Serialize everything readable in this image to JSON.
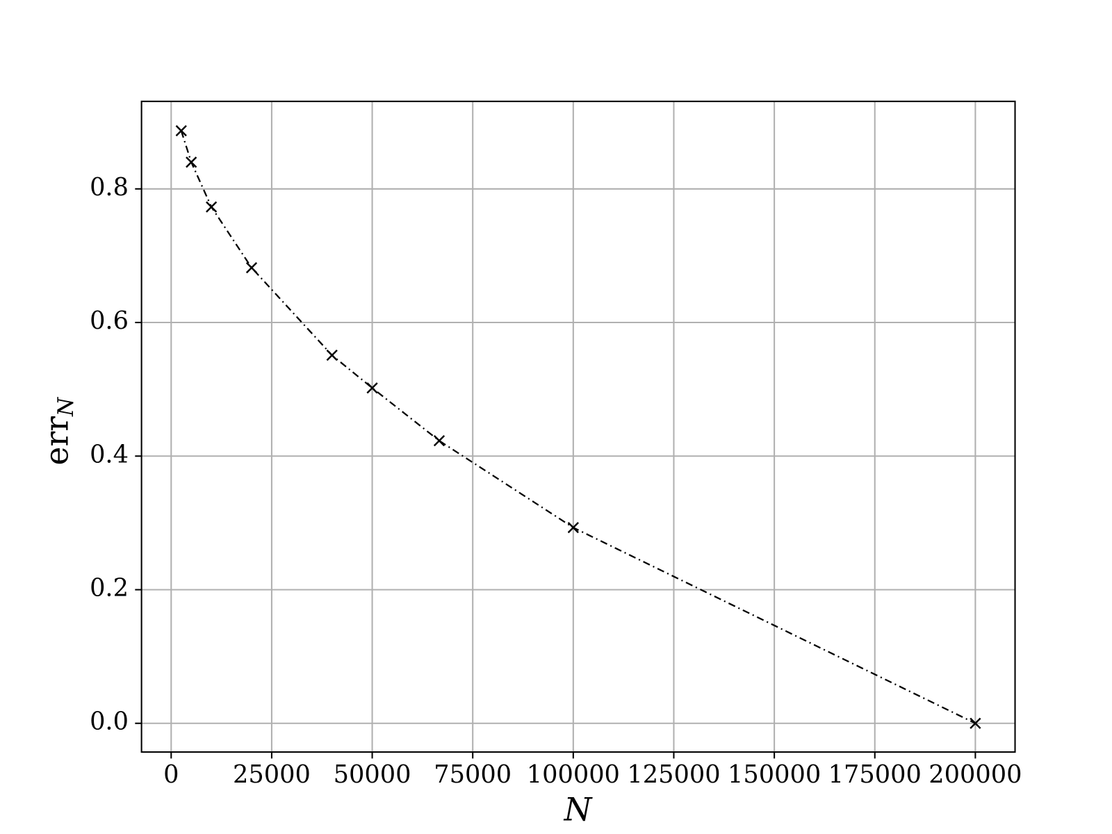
{
  "chart_data": {
    "type": "line",
    "xlabel": "N",
    "ylabel": "err",
    "ylabel_subscript": "N",
    "x": [
      2500,
      5000,
      10000,
      20000,
      40000,
      50000,
      66667,
      100000,
      200000
    ],
    "series": [
      {
        "color": "#000000",
        "marker": "x",
        "linestyle": "dashdot",
        "values": [
          0.887,
          0.84,
          0.773,
          0.682,
          0.551,
          0.502,
          0.423,
          0.293,
          0.0
        ]
      }
    ],
    "xlim": [
      -7375,
      209875
    ],
    "ylim": [
      -0.043,
      0.931
    ],
    "xticks": [
      0,
      25000,
      50000,
      75000,
      100000,
      125000,
      150000,
      175000,
      200000
    ],
    "yticks": [
      {
        "value": 0,
        "label": "0.0"
      },
      0.2,
      0.4,
      0.6,
      0.8
    ],
    "grid": true
  }
}
